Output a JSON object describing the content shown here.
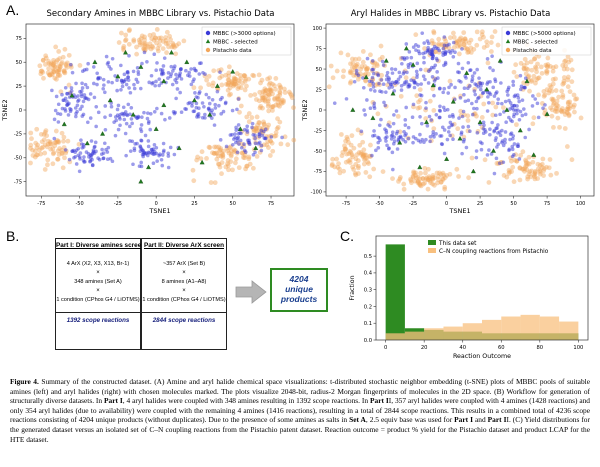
{
  "panel_a": {
    "letter": "A.",
    "left_plot": {
      "title": "Secondary Amines in MBBC Library vs. Pistachio Data",
      "xlabel": "TSNE1",
      "ylabel": "TSNE2",
      "legend": [
        "MBBC (>3000 options)",
        "MBBC - selected",
        "Pistachio data"
      ]
    },
    "right_plot": {
      "title": "Aryl Halides in MBBC Library vs. Pistachio Data",
      "xlabel": "TSNE1",
      "ylabel": "TSNE2",
      "legend": [
        "MBBC (>5000 options)",
        "MBBC - selected",
        "Pistachio data"
      ]
    }
  },
  "panel_b": {
    "letter": "B.",
    "part1": {
      "title": "Part I: Diverse amines screen",
      "line1": "4 ArX (X2, X3, X13, Br-1)",
      "times1": "×",
      "line2": "348 amines (Set A)",
      "times2": "×",
      "line3": "1 condition (CPhos G4 / LiOTMS)",
      "scope": "1392 scope reactions"
    },
    "part2": {
      "title": "Part II: Diverse ArX screen",
      "line1": "~357 ArX (Set B)",
      "times1": "×",
      "line2": "8 amines (A1–A8)",
      "times2": "×",
      "line3": "1 condition (CPhos G4 / LiOTMS)",
      "scope": "2844 scope reactions"
    },
    "result": {
      "line1": "4204",
      "line2": "unique",
      "line3": "products"
    }
  },
  "panel_c": {
    "letter": "C.",
    "legend": [
      "This data set",
      "C–N coupling reactions from Pistachio"
    ]
  },
  "caption": "Figure 4. Summary of the constructed dataset. (A) Amine and aryl halide chemical space visualizations: t-distributed stochastic neighbor embedding (t-SNE) plots of MBBC pools of suitable amines (left) and aryl halides (right) with chosen molecules marked. The plots visualize 2048-bit, radius-2 Morgan fingerprints of molecules in the 2D space. (B) Workflow for generation of structurally diverse datasets. In Part I, 4 aryl halides were coupled with 348 amines resulting in 1392 scope reactions. In Part II, 357 aryl halides were coupled with 4 amines (1428 reactions) and only 354 aryl halides (due to availability) were coupled with the remaining 4 amines (1416 reactions), resulting in a total of 2844 scope reactions. This results in a combined total of 4236 scope reactions consisting of 4204 unique products (without duplicates). Due to the presence of some amines as salts in Set A, 2.5 equiv base was used for Part I and Part II. (C) Yield distributions for the generated dataset versus an isolated set of C–N coupling reactions from the Pistachio patent dataset. Reaction outcome = product % yield for the Pistachio dataset and product LCAP for the HTE dataset.",
  "chart_data": [
    {
      "type": "scatter",
      "title": "Secondary Amines in MBBC Library vs. Pistachio Data",
      "xlabel": "TSNE1",
      "ylabel": "TSNE2",
      "xticks": [
        -75,
        -50,
        -25,
        0,
        25,
        50,
        75
      ],
      "yticks": [
        -75,
        -50,
        -25,
        0,
        25,
        50,
        75
      ],
      "xlim": [
        -85,
        90
      ],
      "ylim": [
        -90,
        90
      ],
      "series": [
        {
          "name": "MBBC (>3000 options)",
          "color": "#3a3ad8",
          "clusters": [
            [
              -30,
              35,
              22,
              18
            ],
            [
              10,
              40,
              18,
              16
            ],
            [
              -55,
              10,
              14,
              18
            ],
            [
              -20,
              -10,
              20,
              16
            ],
            [
              30,
              5,
              18,
              20
            ],
            [
              -5,
              -45,
              16,
              14
            ],
            [
              60,
              -30,
              14,
              18
            ],
            [
              -45,
              -45,
              14,
              12
            ]
          ]
        },
        {
          "name": "MBBC - selected",
          "color": "#1f7a1f",
          "points": [
            [
              -40,
              50
            ],
            [
              -25,
              35
            ],
            [
              -10,
              45
            ],
            [
              5,
              30
            ],
            [
              20,
              50
            ],
            [
              -55,
              15
            ],
            [
              -30,
              10
            ],
            [
              -15,
              -5
            ],
            [
              0,
              -20
            ],
            [
              25,
              10
            ],
            [
              35,
              -5
            ],
            [
              15,
              -40
            ],
            [
              -5,
              -60
            ],
            [
              -45,
              -35
            ],
            [
              55,
              -20
            ],
            [
              65,
              -40
            ],
            [
              -60,
              -15
            ],
            [
              10,
              60
            ],
            [
              -20,
              60
            ],
            [
              40,
              25
            ],
            [
              -35,
              -25
            ],
            [
              5,
              5
            ],
            [
              -10,
              -75
            ],
            [
              50,
              40
            ],
            [
              30,
              -55
            ]
          ]
        },
        {
          "name": "Pistachio data",
          "color": "#f2a65a",
          "clusters": [
            [
              50,
              30,
              16,
              12
            ],
            [
              70,
              -20,
              12,
              22
            ],
            [
              45,
              -50,
              18,
              14
            ],
            [
              -70,
              -40,
              12,
              16
            ],
            [
              -5,
              70,
              18,
              10
            ],
            [
              75,
              15,
              10,
              12
            ],
            [
              -65,
              45,
              10,
              14
            ]
          ]
        }
      ]
    },
    {
      "type": "scatter",
      "title": "Aryl Halides in MBBC Library vs. Pistachio Data",
      "xlabel": "TSNE1",
      "ylabel": "TSNE2",
      "xticks": [
        -75,
        -50,
        -25,
        0,
        25,
        50,
        75,
        100
      ],
      "yticks": [
        -100,
        -75,
        -50,
        -25,
        0,
        25,
        50,
        75,
        100
      ],
      "xlim": [
        -90,
        110
      ],
      "ylim": [
        -105,
        105
      ],
      "series": [
        {
          "name": "MBBC (>5000 options)",
          "color": "#3a3ad8",
          "clusters": [
            [
              -50,
              30,
              20,
              30
            ],
            [
              -20,
              40,
              22,
              25
            ],
            [
              20,
              30,
              22,
              28
            ],
            [
              50,
              10,
              20,
              30
            ],
            [
              -40,
              -30,
              22,
              25
            ],
            [
              0,
              -20,
              25,
              28
            ],
            [
              40,
              -40,
              20,
              25
            ],
            [
              -10,
              70,
              18,
              14
            ]
          ]
        },
        {
          "name": "MBBC - selected",
          "color": "#1f7a1f",
          "points": [
            [
              -60,
              40
            ],
            [
              -40,
              20
            ],
            [
              -25,
              55
            ],
            [
              -10,
              30
            ],
            [
              5,
              10
            ],
            [
              15,
              45
            ],
            [
              30,
              25
            ],
            [
              45,
              0
            ],
            [
              55,
              -25
            ],
            [
              35,
              -50
            ],
            [
              10,
              -35
            ],
            [
              -15,
              -15
            ],
            [
              -35,
              -40
            ],
            [
              -55,
              -10
            ],
            [
              0,
              -60
            ],
            [
              20,
              -75
            ],
            [
              -30,
              75
            ],
            [
              60,
              35
            ],
            [
              -70,
              0
            ],
            [
              75,
              -5
            ],
            [
              -20,
              -70
            ],
            [
              40,
              60
            ],
            [
              -45,
              60
            ],
            [
              25,
              -15
            ],
            [
              65,
              -55
            ]
          ]
        },
        {
          "name": "Pistachio data",
          "color": "#f2a65a",
          "clusters": [
            [
              0,
              0,
              55,
              50
            ],
            [
              -60,
              50,
              18,
              18
            ],
            [
              70,
              50,
              18,
              20
            ],
            [
              -70,
              -60,
              16,
              18
            ],
            [
              60,
              -70,
              20,
              16
            ],
            [
              10,
              80,
              25,
              12
            ],
            [
              -15,
              -85,
              20,
              10
            ],
            [
              85,
              10,
              12,
              25
            ]
          ]
        }
      ]
    },
    {
      "type": "bar",
      "title": "",
      "xlabel": "Reaction Outcome",
      "ylabel": "Fraction",
      "xlim": [
        -5,
        105
      ],
      "ylim": [
        0,
        0.62
      ],
      "xticks": [
        0,
        20,
        40,
        60,
        80,
        100
      ],
      "yticks": [
        0.0,
        0.1,
        0.2,
        0.3,
        0.4,
        0.5
      ],
      "bin_edges": [
        0,
        10,
        20,
        30,
        40,
        50,
        60,
        70,
        80,
        90,
        100
      ],
      "series": [
        {
          "name": "This data set",
          "color": "#2e8b22",
          "values": [
            0.57,
            0.07,
            0.06,
            0.05,
            0.05,
            0.04,
            0.04,
            0.04,
            0.04,
            0.04
          ]
        },
        {
          "name": "C–N coupling reactions from Pistachio",
          "color": "#f8c07f",
          "values": [
            0.04,
            0.05,
            0.07,
            0.08,
            0.1,
            0.12,
            0.14,
            0.15,
            0.14,
            0.11
          ]
        }
      ]
    }
  ]
}
